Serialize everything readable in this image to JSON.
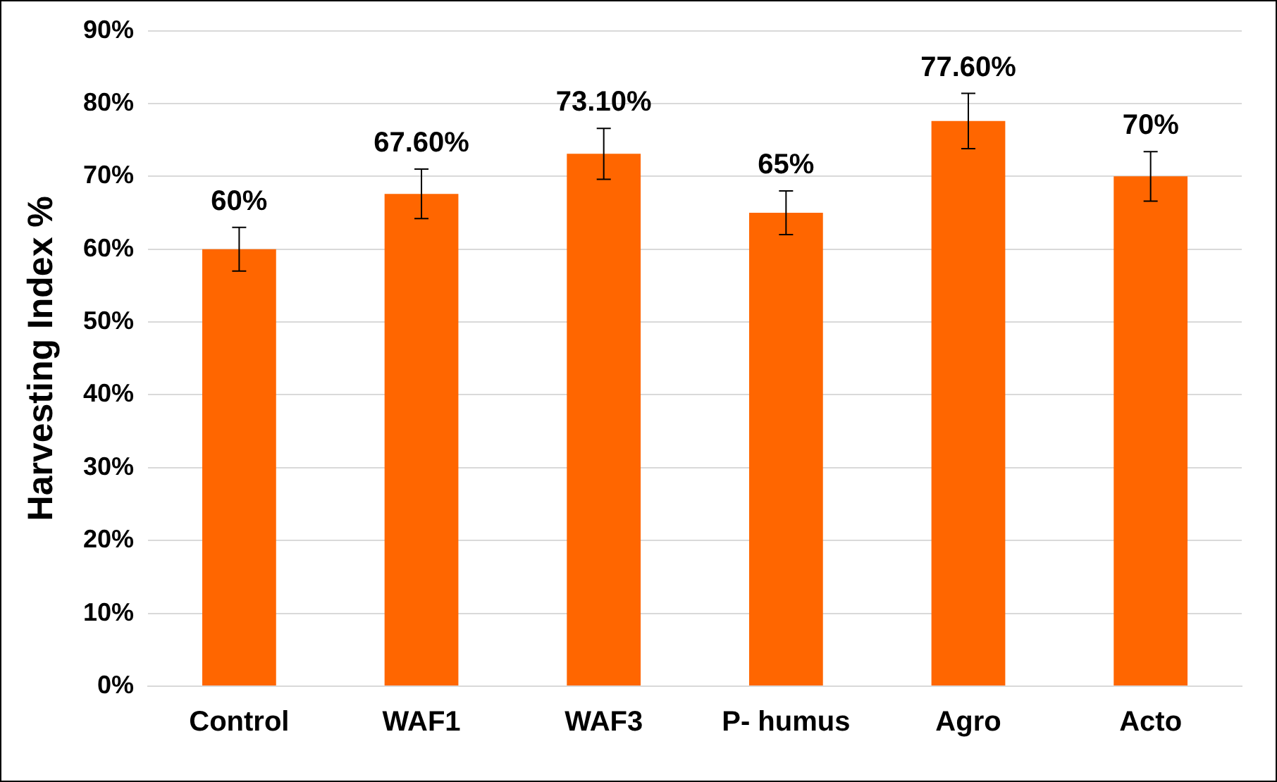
{
  "chart_data": {
    "type": "bar",
    "ylabel": "Harvesting Index %",
    "categories": [
      "Control",
      "WAF1",
      "WAF3",
      "P- humus",
      "Agro",
      "Acto"
    ],
    "values": [
      60,
      67.6,
      73.1,
      65,
      77.6,
      70
    ],
    "errors": [
      3,
      3.4,
      3.5,
      3,
      3.8,
      3.4
    ],
    "value_labels": [
      "60%",
      "67.60%",
      "73.10%",
      "65%",
      "77.60%",
      "70%"
    ],
    "color": "#ff6600",
    "ylim": [
      0,
      90
    ],
    "yticks": [
      {
        "value": 0,
        "label": "0%"
      },
      {
        "value": 10,
        "label": "10%"
      },
      {
        "value": 20,
        "label": "20%"
      },
      {
        "value": 30,
        "label": "30%"
      },
      {
        "value": 40,
        "label": "40%"
      },
      {
        "value": 50,
        "label": "50%"
      },
      {
        "value": 60,
        "label": "60%"
      },
      {
        "value": 70,
        "label": "70%"
      },
      {
        "value": 80,
        "label": "80%"
      },
      {
        "value": 90,
        "label": "90%"
      }
    ],
    "grid": "y",
    "legend": false
  }
}
